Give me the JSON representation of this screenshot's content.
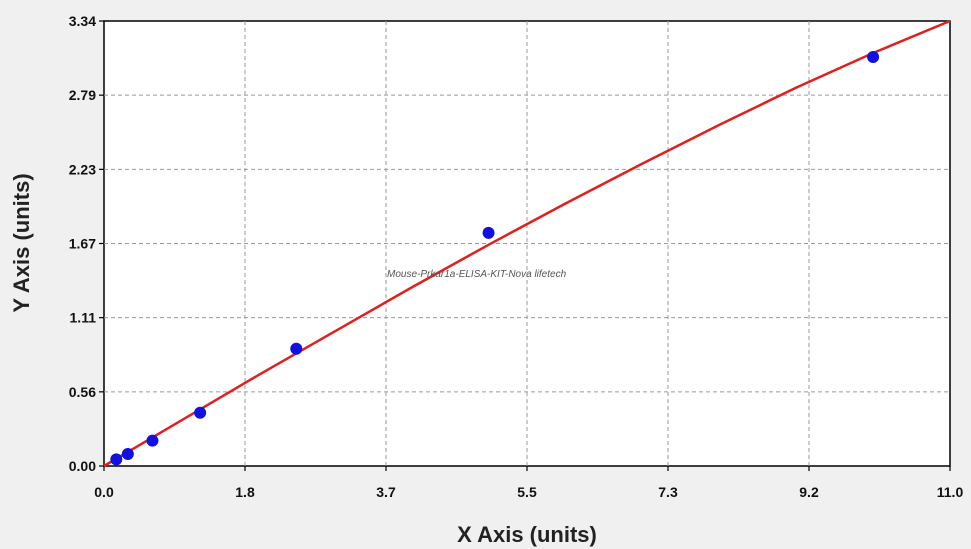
{
  "chart_data": {
    "type": "scatter",
    "title": "",
    "xlabel": "X Axis (units)",
    "ylabel": "Y Axis (units)",
    "annotation": "Mouse-Prkar1a-ELISA-KIT-Nova lifetech",
    "xlim": [
      0.0,
      11.0
    ],
    "ylim": [
      0.0,
      3.34
    ],
    "x_ticks": [
      "0.0",
      "1.8",
      "3.7",
      "5.5",
      "7.3",
      "9.2",
      "11.0"
    ],
    "y_ticks": [
      "0.00",
      "0.56",
      "1.11",
      "1.67",
      "2.23",
      "2.79",
      "3.34"
    ],
    "grid": true,
    "colors": {
      "points": "#1010e0",
      "fit_line": "#e02020",
      "plot_bg": "#ffffff",
      "grid": "#9a9a9a"
    },
    "series": [
      {
        "type": "scatter",
        "x": [
          0.16,
          0.31,
          0.63,
          1.25,
          2.5,
          5.0,
          10.0
        ],
        "y": [
          0.05,
          0.09,
          0.19,
          0.4,
          0.88,
          1.75,
          3.07
        ]
      },
      {
        "type": "line",
        "x": [
          0.0,
          1.0,
          2.0,
          3.0,
          4.0,
          5.0,
          6.0,
          7.0,
          8.0,
          9.0,
          10.0,
          11.0
        ],
        "y": [
          0.0,
          0.34,
          0.68,
          1.01,
          1.34,
          1.66,
          1.97,
          2.27,
          2.56,
          2.84,
          3.1,
          3.34
        ]
      }
    ]
  }
}
